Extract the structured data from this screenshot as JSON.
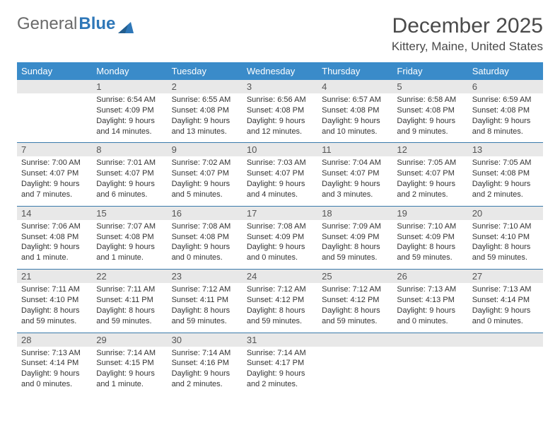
{
  "logo": {
    "general": "General",
    "blue": "Blue"
  },
  "header": {
    "month_title": "December 2025",
    "location": "Kittery, Maine, United States"
  },
  "weekdays": [
    "Sunday",
    "Monday",
    "Tuesday",
    "Wednesday",
    "Thursday",
    "Friday",
    "Saturday"
  ],
  "colors": {
    "header_bar": "#3a8bc9",
    "row_divider": "#3a7aab",
    "daynum_bg": "#e8e8e8",
    "text": "#333333",
    "title_text": "#4a4a4a",
    "logo_blue": "#2e77b8"
  },
  "weeks": [
    [
      {
        "day": "",
        "sunrise": "",
        "sunset": "",
        "daylight": ""
      },
      {
        "day": "1",
        "sunrise": "Sunrise: 6:54 AM",
        "sunset": "Sunset: 4:09 PM",
        "daylight": "Daylight: 9 hours and 14 minutes."
      },
      {
        "day": "2",
        "sunrise": "Sunrise: 6:55 AM",
        "sunset": "Sunset: 4:08 PM",
        "daylight": "Daylight: 9 hours and 13 minutes."
      },
      {
        "day": "3",
        "sunrise": "Sunrise: 6:56 AM",
        "sunset": "Sunset: 4:08 PM",
        "daylight": "Daylight: 9 hours and 12 minutes."
      },
      {
        "day": "4",
        "sunrise": "Sunrise: 6:57 AM",
        "sunset": "Sunset: 4:08 PM",
        "daylight": "Daylight: 9 hours and 10 minutes."
      },
      {
        "day": "5",
        "sunrise": "Sunrise: 6:58 AM",
        "sunset": "Sunset: 4:08 PM",
        "daylight": "Daylight: 9 hours and 9 minutes."
      },
      {
        "day": "6",
        "sunrise": "Sunrise: 6:59 AM",
        "sunset": "Sunset: 4:08 PM",
        "daylight": "Daylight: 9 hours and 8 minutes."
      }
    ],
    [
      {
        "day": "7",
        "sunrise": "Sunrise: 7:00 AM",
        "sunset": "Sunset: 4:07 PM",
        "daylight": "Daylight: 9 hours and 7 minutes."
      },
      {
        "day": "8",
        "sunrise": "Sunrise: 7:01 AM",
        "sunset": "Sunset: 4:07 PM",
        "daylight": "Daylight: 9 hours and 6 minutes."
      },
      {
        "day": "9",
        "sunrise": "Sunrise: 7:02 AM",
        "sunset": "Sunset: 4:07 PM",
        "daylight": "Daylight: 9 hours and 5 minutes."
      },
      {
        "day": "10",
        "sunrise": "Sunrise: 7:03 AM",
        "sunset": "Sunset: 4:07 PM",
        "daylight": "Daylight: 9 hours and 4 minutes."
      },
      {
        "day": "11",
        "sunrise": "Sunrise: 7:04 AM",
        "sunset": "Sunset: 4:07 PM",
        "daylight": "Daylight: 9 hours and 3 minutes."
      },
      {
        "day": "12",
        "sunrise": "Sunrise: 7:05 AM",
        "sunset": "Sunset: 4:07 PM",
        "daylight": "Daylight: 9 hours and 2 minutes."
      },
      {
        "day": "13",
        "sunrise": "Sunrise: 7:05 AM",
        "sunset": "Sunset: 4:08 PM",
        "daylight": "Daylight: 9 hours and 2 minutes."
      }
    ],
    [
      {
        "day": "14",
        "sunrise": "Sunrise: 7:06 AM",
        "sunset": "Sunset: 4:08 PM",
        "daylight": "Daylight: 9 hours and 1 minute."
      },
      {
        "day": "15",
        "sunrise": "Sunrise: 7:07 AM",
        "sunset": "Sunset: 4:08 PM",
        "daylight": "Daylight: 9 hours and 1 minute."
      },
      {
        "day": "16",
        "sunrise": "Sunrise: 7:08 AM",
        "sunset": "Sunset: 4:08 PM",
        "daylight": "Daylight: 9 hours and 0 minutes."
      },
      {
        "day": "17",
        "sunrise": "Sunrise: 7:08 AM",
        "sunset": "Sunset: 4:09 PM",
        "daylight": "Daylight: 9 hours and 0 minutes."
      },
      {
        "day": "18",
        "sunrise": "Sunrise: 7:09 AM",
        "sunset": "Sunset: 4:09 PM",
        "daylight": "Daylight: 8 hours and 59 minutes."
      },
      {
        "day": "19",
        "sunrise": "Sunrise: 7:10 AM",
        "sunset": "Sunset: 4:09 PM",
        "daylight": "Daylight: 8 hours and 59 minutes."
      },
      {
        "day": "20",
        "sunrise": "Sunrise: 7:10 AM",
        "sunset": "Sunset: 4:10 PM",
        "daylight": "Daylight: 8 hours and 59 minutes."
      }
    ],
    [
      {
        "day": "21",
        "sunrise": "Sunrise: 7:11 AM",
        "sunset": "Sunset: 4:10 PM",
        "daylight": "Daylight: 8 hours and 59 minutes."
      },
      {
        "day": "22",
        "sunrise": "Sunrise: 7:11 AM",
        "sunset": "Sunset: 4:11 PM",
        "daylight": "Daylight: 8 hours and 59 minutes."
      },
      {
        "day": "23",
        "sunrise": "Sunrise: 7:12 AM",
        "sunset": "Sunset: 4:11 PM",
        "daylight": "Daylight: 8 hours and 59 minutes."
      },
      {
        "day": "24",
        "sunrise": "Sunrise: 7:12 AM",
        "sunset": "Sunset: 4:12 PM",
        "daylight": "Daylight: 8 hours and 59 minutes."
      },
      {
        "day": "25",
        "sunrise": "Sunrise: 7:12 AM",
        "sunset": "Sunset: 4:12 PM",
        "daylight": "Daylight: 8 hours and 59 minutes."
      },
      {
        "day": "26",
        "sunrise": "Sunrise: 7:13 AM",
        "sunset": "Sunset: 4:13 PM",
        "daylight": "Daylight: 9 hours and 0 minutes."
      },
      {
        "day": "27",
        "sunrise": "Sunrise: 7:13 AM",
        "sunset": "Sunset: 4:14 PM",
        "daylight": "Daylight: 9 hours and 0 minutes."
      }
    ],
    [
      {
        "day": "28",
        "sunrise": "Sunrise: 7:13 AM",
        "sunset": "Sunset: 4:14 PM",
        "daylight": "Daylight: 9 hours and 0 minutes."
      },
      {
        "day": "29",
        "sunrise": "Sunrise: 7:14 AM",
        "sunset": "Sunset: 4:15 PM",
        "daylight": "Daylight: 9 hours and 1 minute."
      },
      {
        "day": "30",
        "sunrise": "Sunrise: 7:14 AM",
        "sunset": "Sunset: 4:16 PM",
        "daylight": "Daylight: 9 hours and 2 minutes."
      },
      {
        "day": "31",
        "sunrise": "Sunrise: 7:14 AM",
        "sunset": "Sunset: 4:17 PM",
        "daylight": "Daylight: 9 hours and 2 minutes."
      },
      {
        "day": "",
        "sunrise": "",
        "sunset": "",
        "daylight": ""
      },
      {
        "day": "",
        "sunrise": "",
        "sunset": "",
        "daylight": ""
      },
      {
        "day": "",
        "sunrise": "",
        "sunset": "",
        "daylight": ""
      }
    ]
  ]
}
